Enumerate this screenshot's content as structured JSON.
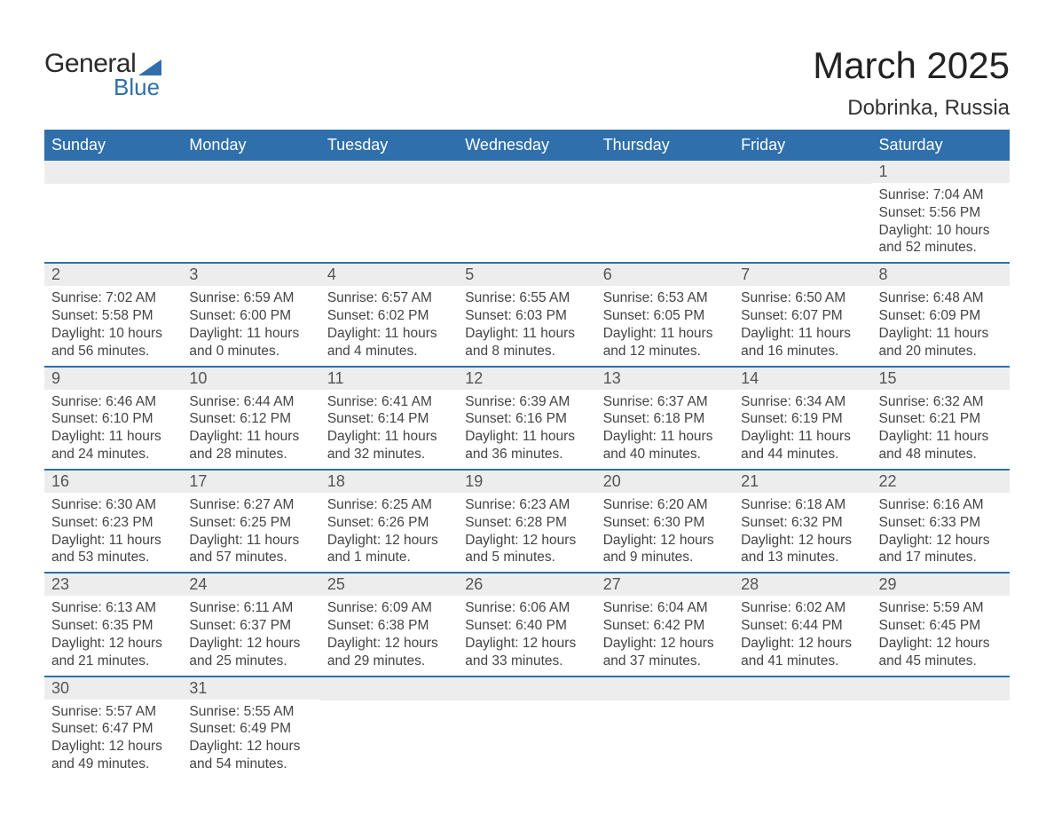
{
  "brand": {
    "word1": "General",
    "word2": "Blue"
  },
  "title": "March 2025",
  "location": "Dobrinka, Russia",
  "colors": {
    "header_bg": "#2f6fab",
    "header_text": "#ffffff",
    "strip_bg": "#ededed",
    "border": "#2f6fab",
    "text": "#444444"
  },
  "weekdays": [
    "Sunday",
    "Monday",
    "Tuesday",
    "Wednesday",
    "Thursday",
    "Friday",
    "Saturday"
  ],
  "weeks": [
    [
      null,
      null,
      null,
      null,
      null,
      null,
      {
        "n": "1",
        "sr": "Sunrise: 7:04 AM",
        "ss": "Sunset: 5:56 PM",
        "d1": "Daylight: 10 hours",
        "d2": "and 52 minutes."
      }
    ],
    [
      {
        "n": "2",
        "sr": "Sunrise: 7:02 AM",
        "ss": "Sunset: 5:58 PM",
        "d1": "Daylight: 10 hours",
        "d2": "and 56 minutes."
      },
      {
        "n": "3",
        "sr": "Sunrise: 6:59 AM",
        "ss": "Sunset: 6:00 PM",
        "d1": "Daylight: 11 hours",
        "d2": "and 0 minutes."
      },
      {
        "n": "4",
        "sr": "Sunrise: 6:57 AM",
        "ss": "Sunset: 6:02 PM",
        "d1": "Daylight: 11 hours",
        "d2": "and 4 minutes."
      },
      {
        "n": "5",
        "sr": "Sunrise: 6:55 AM",
        "ss": "Sunset: 6:03 PM",
        "d1": "Daylight: 11 hours",
        "d2": "and 8 minutes."
      },
      {
        "n": "6",
        "sr": "Sunrise: 6:53 AM",
        "ss": "Sunset: 6:05 PM",
        "d1": "Daylight: 11 hours",
        "d2": "and 12 minutes."
      },
      {
        "n": "7",
        "sr": "Sunrise: 6:50 AM",
        "ss": "Sunset: 6:07 PM",
        "d1": "Daylight: 11 hours",
        "d2": "and 16 minutes."
      },
      {
        "n": "8",
        "sr": "Sunrise: 6:48 AM",
        "ss": "Sunset: 6:09 PM",
        "d1": "Daylight: 11 hours",
        "d2": "and 20 minutes."
      }
    ],
    [
      {
        "n": "9",
        "sr": "Sunrise: 6:46 AM",
        "ss": "Sunset: 6:10 PM",
        "d1": "Daylight: 11 hours",
        "d2": "and 24 minutes."
      },
      {
        "n": "10",
        "sr": "Sunrise: 6:44 AM",
        "ss": "Sunset: 6:12 PM",
        "d1": "Daylight: 11 hours",
        "d2": "and 28 minutes."
      },
      {
        "n": "11",
        "sr": "Sunrise: 6:41 AM",
        "ss": "Sunset: 6:14 PM",
        "d1": "Daylight: 11 hours",
        "d2": "and 32 minutes."
      },
      {
        "n": "12",
        "sr": "Sunrise: 6:39 AM",
        "ss": "Sunset: 6:16 PM",
        "d1": "Daylight: 11 hours",
        "d2": "and 36 minutes."
      },
      {
        "n": "13",
        "sr": "Sunrise: 6:37 AM",
        "ss": "Sunset: 6:18 PM",
        "d1": "Daylight: 11 hours",
        "d2": "and 40 minutes."
      },
      {
        "n": "14",
        "sr": "Sunrise: 6:34 AM",
        "ss": "Sunset: 6:19 PM",
        "d1": "Daylight: 11 hours",
        "d2": "and 44 minutes."
      },
      {
        "n": "15",
        "sr": "Sunrise: 6:32 AM",
        "ss": "Sunset: 6:21 PM",
        "d1": "Daylight: 11 hours",
        "d2": "and 48 minutes."
      }
    ],
    [
      {
        "n": "16",
        "sr": "Sunrise: 6:30 AM",
        "ss": "Sunset: 6:23 PM",
        "d1": "Daylight: 11 hours",
        "d2": "and 53 minutes."
      },
      {
        "n": "17",
        "sr": "Sunrise: 6:27 AM",
        "ss": "Sunset: 6:25 PM",
        "d1": "Daylight: 11 hours",
        "d2": "and 57 minutes."
      },
      {
        "n": "18",
        "sr": "Sunrise: 6:25 AM",
        "ss": "Sunset: 6:26 PM",
        "d1": "Daylight: 12 hours",
        "d2": "and 1 minute."
      },
      {
        "n": "19",
        "sr": "Sunrise: 6:23 AM",
        "ss": "Sunset: 6:28 PM",
        "d1": "Daylight: 12 hours",
        "d2": "and 5 minutes."
      },
      {
        "n": "20",
        "sr": "Sunrise: 6:20 AM",
        "ss": "Sunset: 6:30 PM",
        "d1": "Daylight: 12 hours",
        "d2": "and 9 minutes."
      },
      {
        "n": "21",
        "sr": "Sunrise: 6:18 AM",
        "ss": "Sunset: 6:32 PM",
        "d1": "Daylight: 12 hours",
        "d2": "and 13 minutes."
      },
      {
        "n": "22",
        "sr": "Sunrise: 6:16 AM",
        "ss": "Sunset: 6:33 PM",
        "d1": "Daylight: 12 hours",
        "d2": "and 17 minutes."
      }
    ],
    [
      {
        "n": "23",
        "sr": "Sunrise: 6:13 AM",
        "ss": "Sunset: 6:35 PM",
        "d1": "Daylight: 12 hours",
        "d2": "and 21 minutes."
      },
      {
        "n": "24",
        "sr": "Sunrise: 6:11 AM",
        "ss": "Sunset: 6:37 PM",
        "d1": "Daylight: 12 hours",
        "d2": "and 25 minutes."
      },
      {
        "n": "25",
        "sr": "Sunrise: 6:09 AM",
        "ss": "Sunset: 6:38 PM",
        "d1": "Daylight: 12 hours",
        "d2": "and 29 minutes."
      },
      {
        "n": "26",
        "sr": "Sunrise: 6:06 AM",
        "ss": "Sunset: 6:40 PM",
        "d1": "Daylight: 12 hours",
        "d2": "and 33 minutes."
      },
      {
        "n": "27",
        "sr": "Sunrise: 6:04 AM",
        "ss": "Sunset: 6:42 PM",
        "d1": "Daylight: 12 hours",
        "d2": "and 37 minutes."
      },
      {
        "n": "28",
        "sr": "Sunrise: 6:02 AM",
        "ss": "Sunset: 6:44 PM",
        "d1": "Daylight: 12 hours",
        "d2": "and 41 minutes."
      },
      {
        "n": "29",
        "sr": "Sunrise: 5:59 AM",
        "ss": "Sunset: 6:45 PM",
        "d1": "Daylight: 12 hours",
        "d2": "and 45 minutes."
      }
    ],
    [
      {
        "n": "30",
        "sr": "Sunrise: 5:57 AM",
        "ss": "Sunset: 6:47 PM",
        "d1": "Daylight: 12 hours",
        "d2": "and 49 minutes."
      },
      {
        "n": "31",
        "sr": "Sunrise: 5:55 AM",
        "ss": "Sunset: 6:49 PM",
        "d1": "Daylight: 12 hours",
        "d2": "and 54 minutes."
      },
      null,
      null,
      null,
      null,
      null
    ]
  ]
}
